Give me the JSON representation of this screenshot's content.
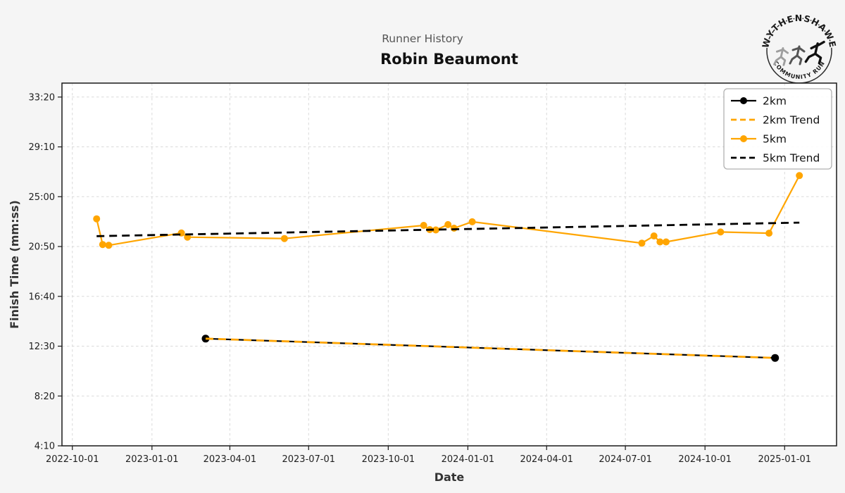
{
  "page": {
    "background": "#f5f5f5"
  },
  "header": {
    "subtitle": "Runner History",
    "title": "Robin Beaumont"
  },
  "logo": {
    "top_text": "WYTHENSHAWE",
    "bottom_text": "COMMUNITY RUN",
    "runner_colors": [
      "#9e9e9e",
      "#555555",
      "#111111"
    ]
  },
  "chart_data": {
    "type": "line",
    "title": "Robin Beaumont",
    "subtitle": "Runner History",
    "xlabel": "Date",
    "ylabel": "Finish Time (mm:ss)",
    "grid": true,
    "legend_position": "upper right",
    "xlim": [
      "2022-09-19",
      "2025-03-02"
    ],
    "ylim_seconds": [
      250,
      2070
    ],
    "x_ticks": [
      "2022-10-01",
      "2023-01-01",
      "2023-04-01",
      "2023-07-01",
      "2023-10-01",
      "2024-01-01",
      "2024-04-01",
      "2024-07-01",
      "2024-10-01",
      "2025-01-01"
    ],
    "y_ticks_seconds": [
      250,
      500,
      750,
      1000,
      1250,
      1500,
      1750,
      2000
    ],
    "y_tick_labels": [
      "4:10",
      "8:20",
      "12:30",
      "16:40",
      "20:50",
      "25:00",
      "29:10",
      "33:20"
    ],
    "series": [
      {
        "name": "2km",
        "color": "#000000",
        "style": "solid",
        "marker": true,
        "points": [
          {
            "date": "2023-03-04",
            "time": "13:08"
          },
          {
            "date": "2024-12-21",
            "time": "11:31"
          }
        ]
      },
      {
        "name": "2km Trend",
        "color": "#FFA500",
        "style": "dashed",
        "marker": false,
        "points": [
          {
            "date": "2023-03-04",
            "time": "13:08"
          },
          {
            "date": "2024-12-21",
            "time": "11:31"
          }
        ]
      },
      {
        "name": "5km",
        "color": "#FFA500",
        "style": "solid",
        "marker": true,
        "points": [
          {
            "date": "2022-10-29",
            "time": "23:09"
          },
          {
            "date": "2022-11-05",
            "time": "21:00"
          },
          {
            "date": "2022-11-12",
            "time": "20:56"
          },
          {
            "date": "2023-02-04",
            "time": "21:58"
          },
          {
            "date": "2023-02-11",
            "time": "21:37"
          },
          {
            "date": "2023-06-03",
            "time": "21:30"
          },
          {
            "date": "2023-11-11",
            "time": "22:36"
          },
          {
            "date": "2023-11-18",
            "time": "22:15"
          },
          {
            "date": "2023-11-25",
            "time": "22:13"
          },
          {
            "date": "2023-12-09",
            "time": "22:40"
          },
          {
            "date": "2023-12-16",
            "time": "22:22"
          },
          {
            "date": "2024-01-06",
            "time": "22:54"
          },
          {
            "date": "2024-07-20",
            "time": "21:07"
          },
          {
            "date": "2024-08-03",
            "time": "21:43"
          },
          {
            "date": "2024-08-10",
            "time": "21:13"
          },
          {
            "date": "2024-08-17",
            "time": "21:13"
          },
          {
            "date": "2024-10-19",
            "time": "22:03"
          },
          {
            "date": "2024-12-14",
            "time": "21:57"
          },
          {
            "date": "2025-01-18",
            "time": "26:46"
          }
        ]
      },
      {
        "name": "5km Trend",
        "color": "#000000",
        "style": "dashed",
        "marker": false,
        "points": [
          {
            "date": "2022-10-29",
            "time": "21:42"
          },
          {
            "date": "2025-01-18",
            "time": "22:50"
          }
        ]
      }
    ]
  }
}
